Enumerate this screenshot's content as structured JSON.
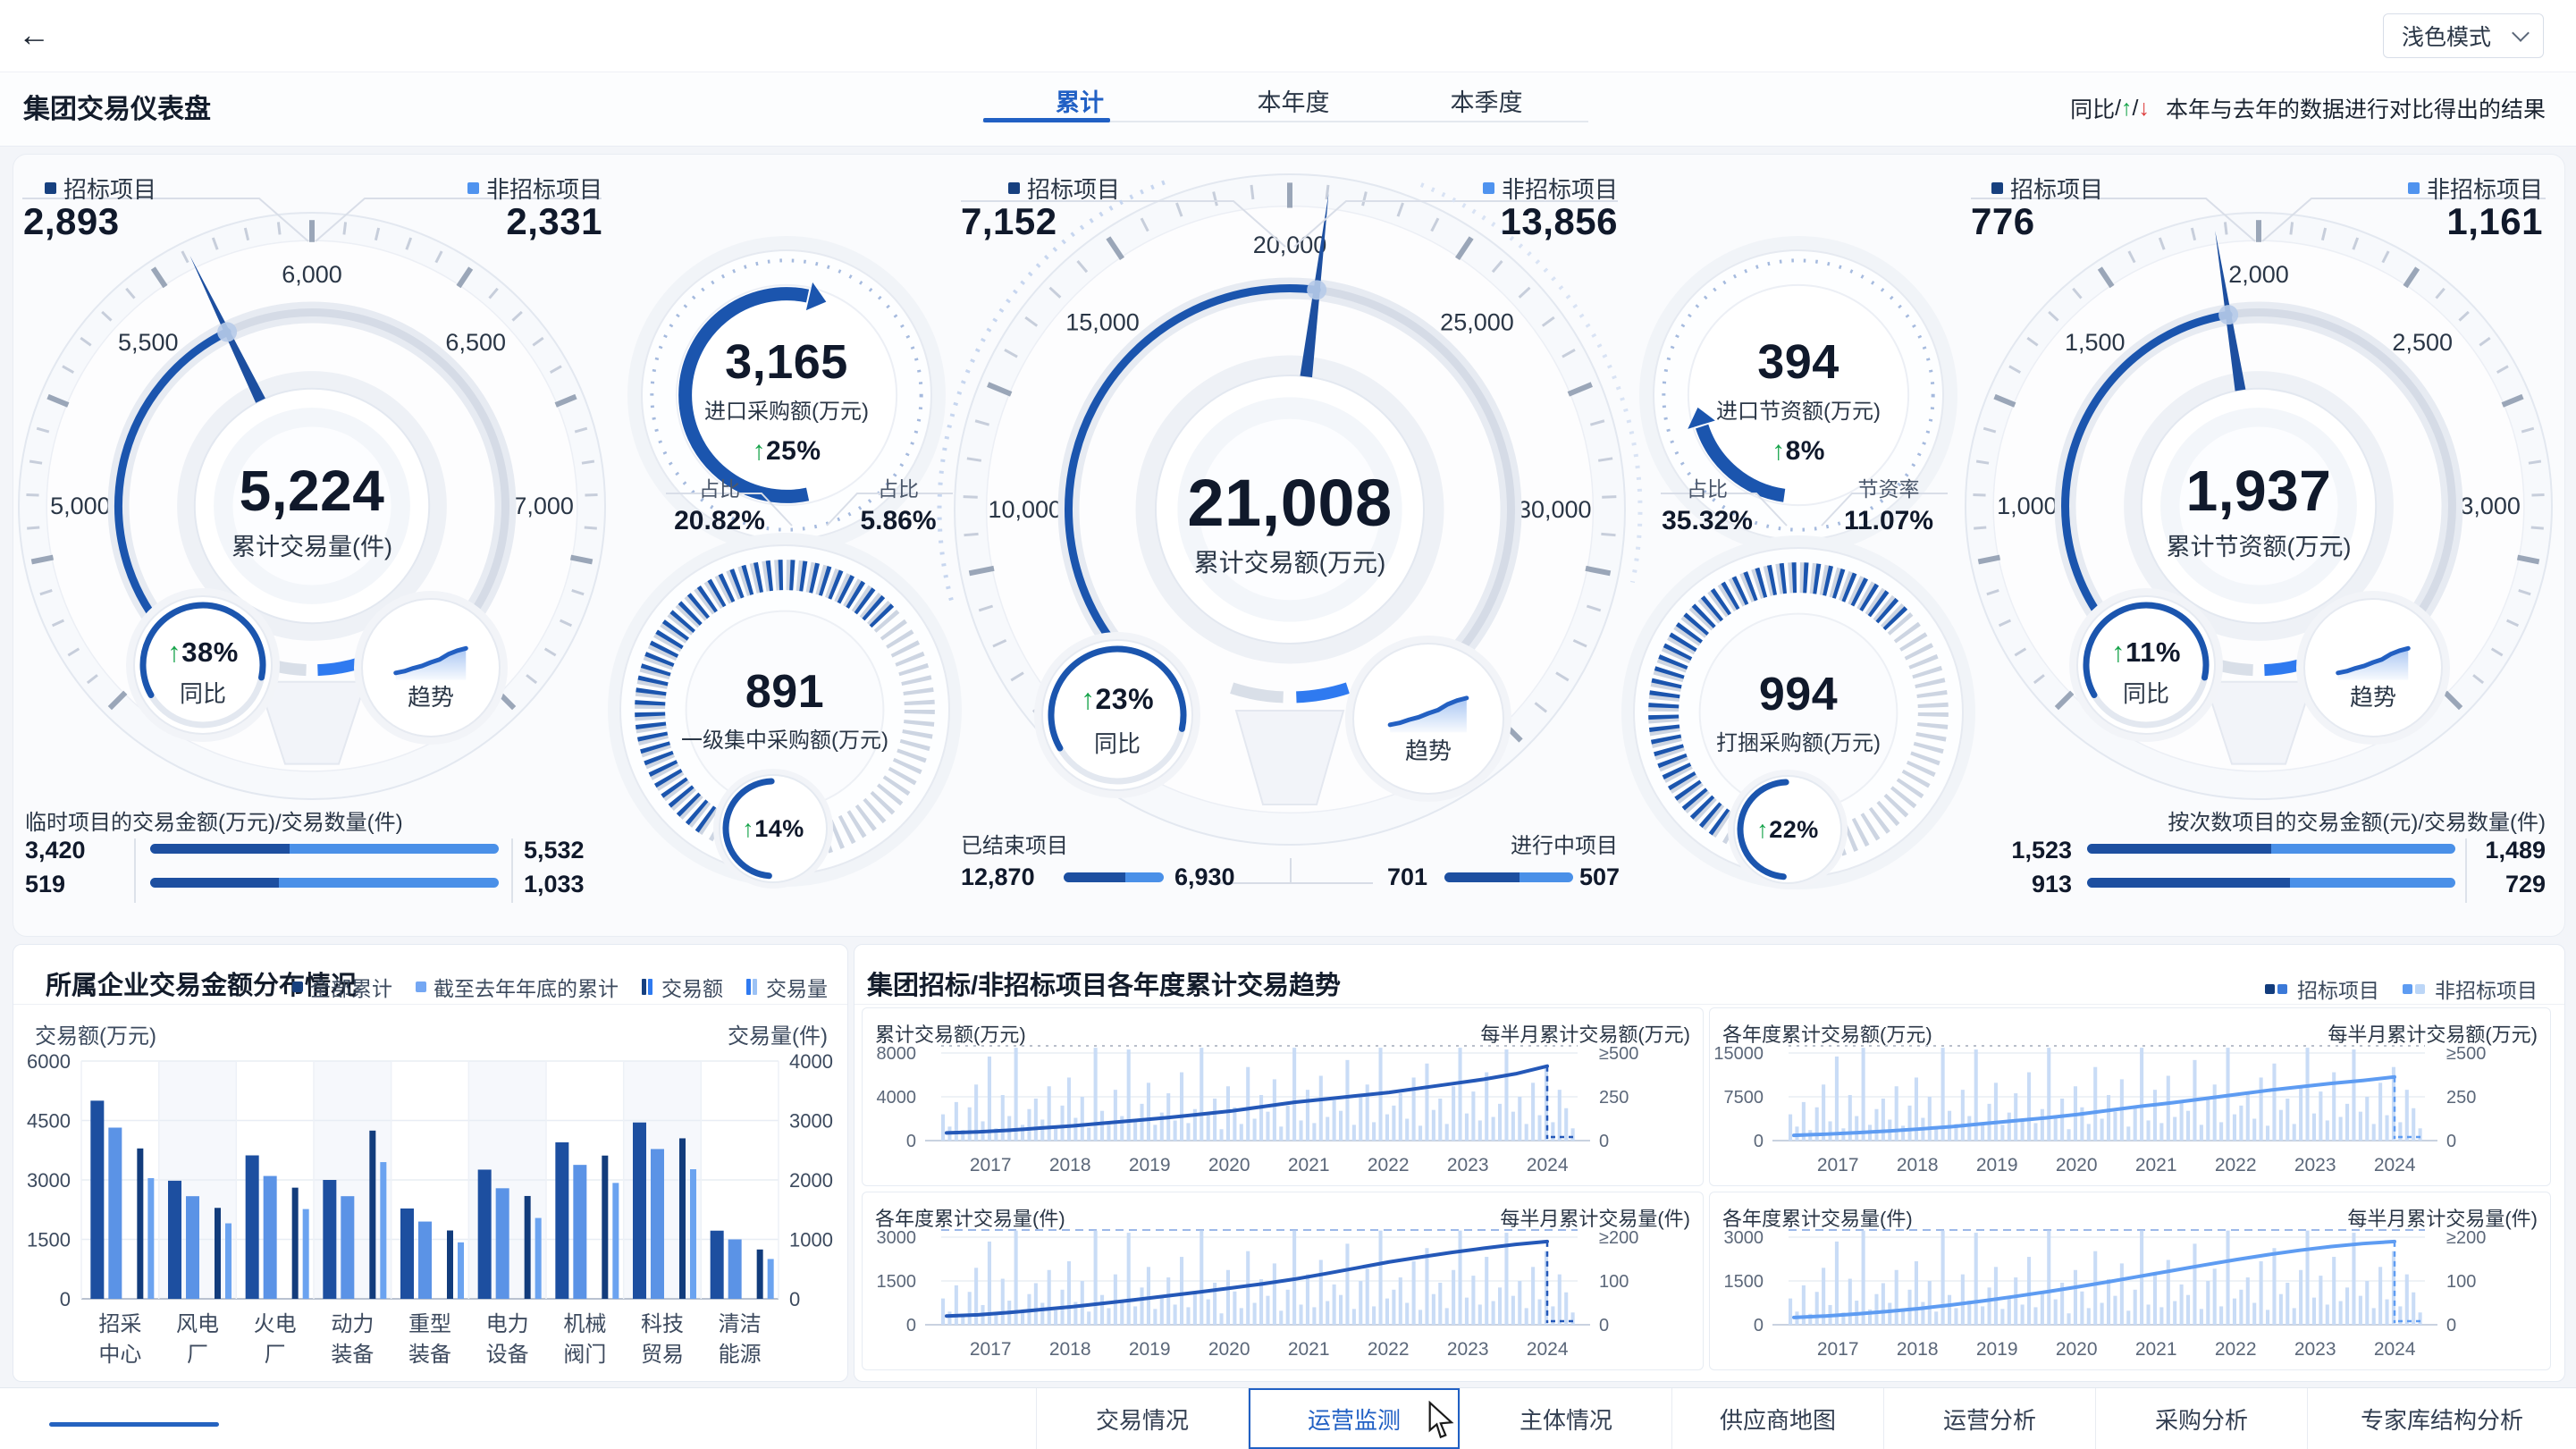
{
  "topbar": {
    "back": "←",
    "theme": "浅色模式"
  },
  "header": {
    "title": "集团交易仪表盘",
    "tabs": [
      "累计",
      "本年度",
      "本季度"
    ],
    "note": {
      "prefix": "同比",
      "slash1": "/",
      "up": "↑",
      "slash2": "/",
      "down": "↓",
      "text": "本年与去年的数据进行对比得出的结果"
    }
  },
  "gauges": {
    "g1": {
      "legend_left": "招标项目",
      "legend_left_value": "2,893",
      "legend_right": "非招标项目",
      "legend_right_value": "2,331",
      "ticks": [
        "5,000",
        "5,500",
        "6,000",
        "6,500",
        "7,000"
      ],
      "value": "5,224",
      "label": "累计交易量(件)",
      "yoy_arrow": "↑",
      "yoy": "38%",
      "yoy_label": "同比",
      "trend_label": "趋势"
    },
    "g2": {
      "legend_left": "招标项目",
      "legend_left_value": "7,152",
      "legend_right": "非招标项目",
      "legend_right_value": "13,856",
      "ticks": [
        "10,000",
        "15,000",
        "20,000",
        "25,000",
        "30,000"
      ],
      "value": "21,008",
      "label": "累计交易额(万元)",
      "yoy_arrow": "↑",
      "yoy": "23%",
      "yoy_label": "同比",
      "trend_label": "趋势"
    },
    "g3": {
      "legend_left": "招标项目",
      "legend_left_value": "776",
      "legend_right": "非招标项目",
      "legend_right_value": "1,161",
      "ticks": [
        "1,000",
        "1,500",
        "2,000",
        "2,500",
        "3,000"
      ],
      "value": "1,937",
      "label": "累计节资额(万元)",
      "yoy_arrow": "↑",
      "yoy": "11%",
      "yoy_label": "同比",
      "trend_label": "趋势"
    }
  },
  "circles": {
    "c1": {
      "value": "3,165",
      "label": "进口采购额(万元)",
      "yoy_arrow": "↑",
      "yoy": "25%",
      "subs": [
        {
          "label": "占比",
          "value": "20.82%"
        },
        {
          "label": "占比",
          "value": "5.86%"
        }
      ]
    },
    "c2": {
      "value": "891",
      "label": "一级集中采购额(万元)",
      "badge_arrow": "↑",
      "badge": "14%"
    },
    "c3": {
      "value": "394",
      "label": "进口节资额(万元)",
      "yoy_arrow": "↑",
      "yoy": "8%",
      "subs": [
        {
          "label": "占比",
          "value": "35.32%"
        },
        {
          "label": "节资率",
          "value": "11.07%"
        }
      ]
    },
    "c4": {
      "value": "994",
      "label": "打捆采购额(万元)",
      "badge_arrow": "↑",
      "badge": "22%"
    }
  },
  "footers": {
    "f1": {
      "title": "临时项目的交易金额(万元)/交易数量(件)",
      "rows": [
        {
          "left": "3,420",
          "right": "5,532",
          "frac": 0.4
        },
        {
          "left": "519",
          "right": "1,033",
          "frac": 0.37
        }
      ]
    },
    "f2": {
      "label_left": "已结束项目",
      "label_right": "进行中项目",
      "rows": [
        {
          "left": "12,870",
          "right": "6,930",
          "frac": 0.62
        },
        {
          "left": "701",
          "right": "507",
          "frac": 0.58
        }
      ]
    },
    "f3": {
      "title": "按次数项目的交易金额(元)/交易数量(件)",
      "rows": [
        {
          "left": "1,523",
          "right": "1,489",
          "frac": 0.5
        },
        {
          "left": "913",
          "right": "729",
          "frac": 0.55
        }
      ]
    }
  },
  "left_panel": {
    "title": "所属企业交易金额分布情况",
    "legend": [
      "全部累计",
      "截至去年年底的累计",
      "交易额",
      "交易量"
    ],
    "y_left": "交易额(万元)",
    "y_right": "交易量(件)"
  },
  "right_panel": {
    "title": "集团招标/非招标项目各年度累计交易趋势",
    "legend": [
      "招标项目",
      "非招标项目"
    ],
    "charts": [
      {
        "tl": "累计交易额(万元)",
        "tr": "每半月累计交易额(万元)"
      },
      {
        "tl": "各年度累计交易额(万元)",
        "tr": "每半月累计交易额(万元)"
      },
      {
        "tl": "各年度累计交易量(件)",
        "tr": "每半月累计交易量(件)"
      },
      {
        "tl": "各年度累计交易量(件)",
        "tr": "每半月累计交易量(件)"
      }
    ]
  },
  "tabbar": {
    "tabs": [
      "交易情况",
      "运营监测",
      "主体情况",
      "供应商地图",
      "运营分析",
      "采购分析",
      "专家库结构分析"
    ],
    "active_index": 1
  },
  "shared_series": {
    "amount_bars": [
      150,
      80,
      220,
      60,
      190,
      320,
      110,
      480,
      70,
      260,
      140,
      530,
      90,
      180,
      240,
      120,
      310,
      85,
      200,
      360,
      130,
      250,
      75,
      530,
      170,
      95,
      290,
      140,
      520,
      105,
      210,
      330,
      90,
      160,
      270,
      115,
      390,
      100,
      180,
      530,
      145,
      240,
      65,
      310,
      190,
      95,
      420,
      125,
      260,
      165,
      350,
      80,
      200,
      530,
      115,
      290,
      100,
      370,
      135,
      230,
      170,
      460,
      90,
      250,
      320,
      105,
      530,
      150,
      200,
      270,
      125,
      360,
      85,
      440,
      175,
      240,
      95,
      310,
      530,
      155,
      280,
      115,
      390,
      135,
      210,
      520,
      165,
      250,
      95,
      330,
      145,
      420,
      105,
      290,
      185,
      70
    ],
    "volume_bars": [
      60,
      30,
      90,
      25,
      75,
      130,
      45,
      190,
      28,
      105,
      55,
      215,
      35,
      70,
      95,
      50,
      125,
      33,
      80,
      145,
      52,
      100,
      30,
      215,
      68,
      38,
      115,
      55,
      210,
      42,
      85,
      132,
      36,
      65,
      108,
      46,
      155,
      40,
      72,
      215,
      58,
      96,
      26,
      125,
      76,
      38,
      168,
      50,
      104,
      66,
      140,
      32,
      80,
      215,
      46,
      115,
      40,
      148,
      54,
      92,
      68,
      185,
      36,
      100,
      128,
      42,
      215,
      60,
      80,
      108,
      50,
      145,
      34,
      175,
      70,
      96,
      38,
      125,
      215,
      62,
      112,
      46,
      155,
      54,
      85,
      210,
      66,
      100,
      38,
      132,
      58,
      168,
      42,
      115,
      74,
      28
    ]
  },
  "chart_data": [
    {
      "id": "company-bars",
      "type": "bar",
      "title": "所属企业交易金额分布情况",
      "categories": [
        [
          "招采",
          "中心"
        ],
        [
          "风电",
          "厂"
        ],
        [
          "火电",
          "厂"
        ],
        [
          "动力",
          "装备"
        ],
        [
          "重型",
          "装备"
        ],
        [
          "电力",
          "设备"
        ],
        [
          "机械",
          "阀门"
        ],
        [
          "科技",
          "贸易"
        ],
        [
          "清洁",
          "能源"
        ]
      ],
      "ylabel_left": "交易额(万元)",
      "ylabel_right": "交易量(件)",
      "ylim_left": [
        0,
        6000
      ],
      "ylim_right": [
        0,
        4000
      ],
      "yticks_left": [
        "0",
        "1500",
        "3000",
        "4500",
        "6000"
      ],
      "yticks_right": [
        "0",
        "1000",
        "2000",
        "3000",
        "4000"
      ],
      "series": [
        {
          "name": "全部累计-交易额",
          "axis": "left",
          "color": "#1d4fa0",
          "values": [
            5000,
            2980,
            3620,
            3000,
            2280,
            3260,
            3950,
            4450,
            1720
          ]
        },
        {
          "name": "截至去年年底的累计-交易额",
          "axis": "left",
          "color": "#5b93e6",
          "values": [
            4320,
            2590,
            3100,
            2590,
            1950,
            2790,
            3380,
            3780,
            1500
          ]
        },
        {
          "name": "全部累计-交易量",
          "axis": "right",
          "color": "#123c7c",
          "values": [
            2530,
            1530,
            1870,
            2830,
            1150,
            1730,
            2410,
            2700,
            830
          ]
        },
        {
          "name": "截至去年年底的累计-交易量",
          "axis": "right",
          "color": "#6ba3f0",
          "values": [
            2030,
            1270,
            1510,
            2300,
            950,
            1360,
            1950,
            2180,
            670
          ]
        }
      ]
    },
    {
      "id": "mini-0",
      "type": "bar-line",
      "title": "累计交易额(万元)",
      "right_title": "每半月累计交易额(万元)",
      "years": [
        "2017",
        "2018",
        "2019",
        "2020",
        "2021",
        "2022",
        "2023",
        "2024"
      ],
      "yticks_left": [
        "0",
        "4000",
        "8000"
      ],
      "yticks_right": [
        "0",
        "250",
        "≥500"
      ],
      "ylim_left": [
        0,
        8000
      ],
      "ylim_right": [
        0,
        500
      ],
      "bars_ref": "amount_bars",
      "line_color": "#2458b8",
      "cap": "dotted",
      "line": [
        700,
        800,
        950,
        1150,
        1350,
        1600,
        1850,
        2100,
        2400,
        2700,
        3100,
        3500,
        3800,
        4100,
        4400,
        4800,
        5200,
        5600,
        6100,
        6800
      ]
    },
    {
      "id": "mini-1",
      "type": "bar-line",
      "title": "各年度累计交易额(万元)",
      "right_title": "每半月累计交易额(万元)",
      "years": [
        "2017",
        "2018",
        "2019",
        "2020",
        "2021",
        "2022",
        "2023",
        "2024"
      ],
      "yticks_left": [
        "0",
        "7500",
        "15000"
      ],
      "yticks_right": [
        "0",
        "250",
        "≥500"
      ],
      "ylim_left": [
        0,
        15000
      ],
      "ylim_right": [
        0,
        500
      ],
      "bars_ref": "amount_bars",
      "line_color": "#5e9cf2",
      "cap": "dotted",
      "line": [
        900,
        1100,
        1350,
        1650,
        2000,
        2400,
        2900,
        3400,
        3900,
        4500,
        5200,
        5900,
        6500,
        7200,
        7900,
        8600,
        9200,
        9800,
        10300,
        10900
      ]
    },
    {
      "id": "mini-2",
      "type": "bar-line",
      "title": "各年度累计交易量(件)",
      "right_title": "每半月累计交易量(件)",
      "years": [
        "2017",
        "2018",
        "2019",
        "2020",
        "2021",
        "2022",
        "2023",
        "2024"
      ],
      "yticks_left": [
        "0",
        "1500",
        "3000"
      ],
      "yticks_right": [
        "0",
        "100",
        "≥200"
      ],
      "ylim_left": [
        0,
        3000
      ],
      "ylim_right": [
        0,
        200
      ],
      "bars_ref": "volume_bars",
      "line_color": "#2458b8",
      "cap": "dashed",
      "line": [
        300,
        340,
        420,
        520,
        620,
        740,
        860,
        990,
        1120,
        1260,
        1400,
        1560,
        1750,
        1950,
        2150,
        2320,
        2480,
        2620,
        2750,
        2850
      ]
    },
    {
      "id": "mini-3",
      "type": "bar-line",
      "title": "各年度累计交易量(件)",
      "right_title": "每半月累计交易量(件)",
      "years": [
        "2017",
        "2018",
        "2019",
        "2020",
        "2021",
        "2022",
        "2023",
        "2024"
      ],
      "yticks_left": [
        "0",
        "1500",
        "3000"
      ],
      "yticks_right": [
        "0",
        "100",
        "≥200"
      ],
      "ylim_left": [
        0,
        3000
      ],
      "ylim_right": [
        0,
        200
      ],
      "bars_ref": "volume_bars",
      "line_color": "#5e9cf2",
      "cap": "dashed",
      "line": [
        250,
        300,
        370,
        460,
        560,
        680,
        820,
        970,
        1130,
        1300,
        1480,
        1670,
        1860,
        2050,
        2230,
        2400,
        2550,
        2680,
        2780,
        2850
      ]
    }
  ]
}
